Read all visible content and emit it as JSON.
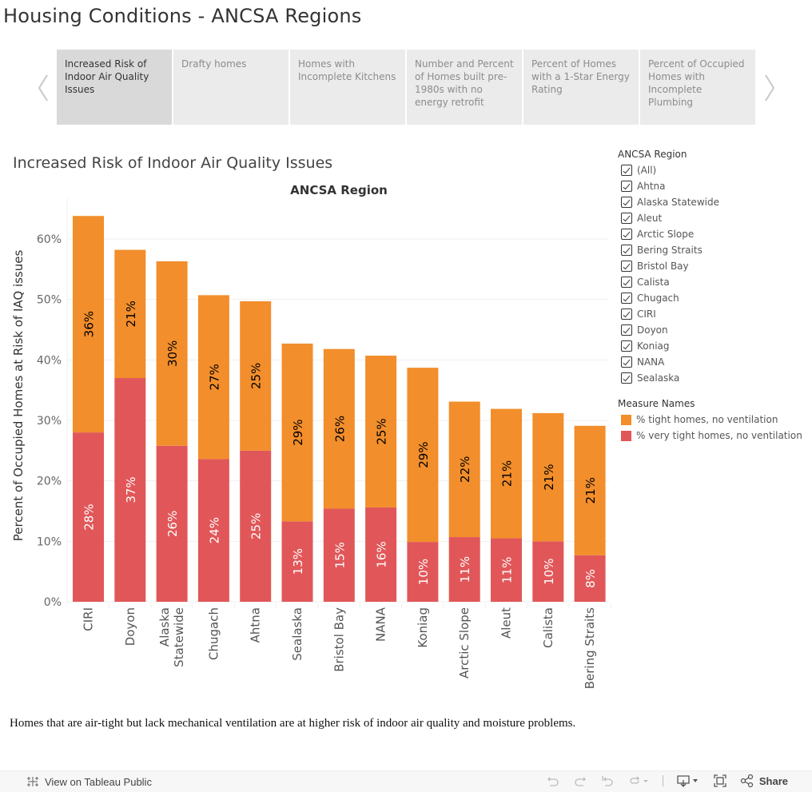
{
  "dashboard": {
    "title": "Housing Conditions - ANCSA Regions"
  },
  "tabs": [
    {
      "label": "Increased Risk of Indoor Air Quality Issues",
      "active": true
    },
    {
      "label": "Drafty homes",
      "active": false
    },
    {
      "label": "Homes with Incomplete Kitchens",
      "active": false
    },
    {
      "label": "Number and Percent of Homes built pre-1980s with no energy retrofit",
      "active": false
    },
    {
      "label": "Percent of Homes with a 1-Star Energy Rating",
      "active": false
    },
    {
      "label": "Percent of Occupied Homes with Incomplete Plumbing",
      "active": false
    }
  ],
  "sheet": {
    "title": "Increased Risk of Indoor Air Quality Issues"
  },
  "colors": {
    "tight": "#f28e2b",
    "very_tight": "#e15759",
    "label_dark": "#000000",
    "label_light": "#ffffff"
  },
  "chart_data": {
    "type": "bar",
    "stacked": true,
    "title": "ANCSA Region",
    "xlabel": "",
    "ylabel": "Percent of Occupied Homes at Risk of IAQ issues",
    "ylim": [
      0,
      65
    ],
    "yticks": [
      0,
      10,
      20,
      30,
      40,
      50,
      60
    ],
    "ytick_labels": [
      "0%",
      "10%",
      "20%",
      "30%",
      "40%",
      "50%",
      "60%"
    ],
    "grid": true,
    "legend_position": "right",
    "categories": [
      "CIRI",
      "Doyon",
      "Alaska Statewide",
      "Chugach",
      "Ahtna",
      "Sealaska",
      "Bristol Bay",
      "NANA",
      "Koniag",
      "Arctic Slope",
      "Aleut",
      "Calista",
      "Bering Straits"
    ],
    "category_label_lines": [
      [
        "CIRI"
      ],
      [
        "Doyon"
      ],
      [
        "Alaska",
        "Statewide"
      ],
      [
        "Chugach"
      ],
      [
        "Ahtna"
      ],
      [
        "Sealaska"
      ],
      [
        "Bristol Bay"
      ],
      [
        "NANA"
      ],
      [
        "Koniag"
      ],
      [
        "Arctic Slope"
      ],
      [
        "Aleut"
      ],
      [
        "Calista"
      ],
      [
        "Bering Straits"
      ]
    ],
    "series": [
      {
        "name": "% very tight homes, no ventilation",
        "color": "#e15759",
        "values": [
          28.0,
          37.0,
          25.8,
          23.6,
          25.0,
          13.3,
          15.4,
          15.6,
          9.9,
          10.7,
          10.5,
          10.0,
          7.7
        ],
        "labels": [
          "28%",
          "37%",
          "26%",
          "24%",
          "25%",
          "13%",
          "15%",
          "16%",
          "10%",
          "11%",
          "11%",
          "10%",
          "8%"
        ]
      },
      {
        "name": "% tight homes, no ventilation",
        "color": "#f28e2b",
        "values": [
          35.8,
          21.2,
          30.5,
          27.1,
          24.7,
          29.4,
          26.4,
          25.1,
          28.8,
          22.4,
          21.4,
          21.2,
          21.4
        ],
        "labels": [
          "36%",
          "21%",
          "30%",
          "27%",
          "25%",
          "29%",
          "26%",
          "25%",
          "29%",
          "22%",
          "21%",
          "21%",
          "21%"
        ]
      }
    ]
  },
  "filter": {
    "title": "ANCSA Region",
    "items": [
      {
        "label": "(All)",
        "checked": true
      },
      {
        "label": "Ahtna",
        "checked": true
      },
      {
        "label": "Alaska Statewide",
        "checked": true
      },
      {
        "label": "Aleut",
        "checked": true
      },
      {
        "label": "Arctic Slope",
        "checked": true
      },
      {
        "label": "Bering Straits",
        "checked": true
      },
      {
        "label": "Bristol Bay",
        "checked": true
      },
      {
        "label": "Calista",
        "checked": true
      },
      {
        "label": "Chugach",
        "checked": true
      },
      {
        "label": "CIRI",
        "checked": true
      },
      {
        "label": "Doyon",
        "checked": true
      },
      {
        "label": "Koniag",
        "checked": true
      },
      {
        "label": "NANA",
        "checked": true
      },
      {
        "label": "Sealaska",
        "checked": true
      }
    ]
  },
  "legend": {
    "title": "Measure Names",
    "items": [
      {
        "label": "% tight homes, no ventilation",
        "color": "#f28e2b"
      },
      {
        "label": "% very tight homes, no ventilation",
        "color": "#e15759"
      }
    ]
  },
  "caption": "Homes that are air-tight but lack mechanical ventilation are at higher risk of indoor air quality and moisture problems.",
  "toolbar": {
    "view_label": "View on Tableau Public",
    "share_label": "Share",
    "icons": [
      "undo-icon",
      "redo-icon",
      "revert-icon",
      "refresh-icon",
      "download-icon",
      "fullscreen-icon",
      "share-icon"
    ]
  }
}
